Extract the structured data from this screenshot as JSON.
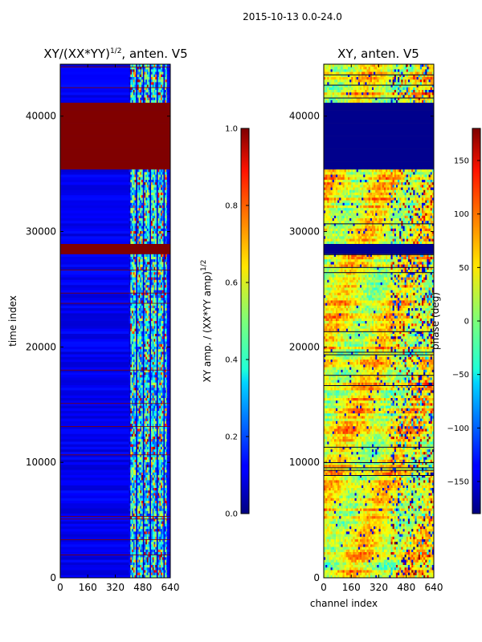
{
  "suptitle": "2015-10-13 0.0-24.0",
  "colors": {
    "accent": "#800000",
    "ink": "#000000"
  },
  "chart_data": [
    {
      "type": "heatmap",
      "title_main": "XY/(XX*YY)",
      "title_sup": "1/2",
      "title_rest": ", anten. V5",
      "xlabel": "",
      "ylabel": "time index",
      "xlim": [
        0,
        640
      ],
      "ylim": [
        0,
        44500
      ],
      "xticks": [
        "0",
        "160",
        "320",
        "480",
        "640"
      ],
      "yticks": [
        "0",
        "10000",
        "20000",
        "30000",
        "40000"
      ],
      "colorbar": {
        "label_main": "XY amp. / (XX*YY amp)",
        "label_sup": "1/2",
        "range": [
          0.0,
          1.0
        ],
        "ticks": [
          "0.0",
          "0.2",
          "0.4",
          "0.6",
          "0.8",
          "1.0"
        ]
      },
      "saturated_bands": [
        [
          35500,
          41200
        ],
        [
          28200,
          29000
        ]
      ],
      "active_channel_range": [
        400,
        620
      ]
    },
    {
      "type": "heatmap",
      "title": "XY, anten. V5",
      "xlabel": "channel index",
      "ylabel": "",
      "xlim": [
        0,
        640
      ],
      "ylim": [
        0,
        44500
      ],
      "xticks": [
        "0",
        "160",
        "320",
        "480",
        "640"
      ],
      "yticks": [
        "0",
        "10000",
        "20000",
        "30000",
        "40000"
      ],
      "colorbar": {
        "label": "phase (deg)",
        "range": [
          -180,
          180
        ],
        "ticks": [
          "150",
          "100",
          "50",
          "0",
          "−50",
          "−100",
          "−150"
        ]
      },
      "masked_bands": [
        [
          35500,
          41200
        ],
        [
          28200,
          29000
        ]
      ]
    }
  ]
}
